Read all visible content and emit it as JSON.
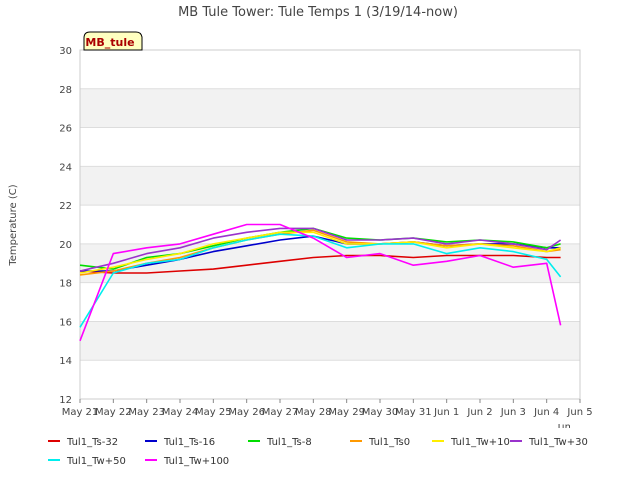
{
  "chart_data": {
    "type": "line",
    "title": "MB Tule Tower: Tule Temps 1 (3/19/14-now)",
    "xlabel": "",
    "ylabel": "Temperature (C)",
    "ylim": [
      12,
      30
    ],
    "yticks": [
      12,
      14,
      16,
      18,
      20,
      22,
      24,
      26,
      28,
      30
    ],
    "xlim": [
      "2014-05-21",
      "2014-06-05"
    ],
    "xtick_labels": [
      "May 21",
      "May 22",
      "May 23",
      "May 24",
      "May 25",
      "May 26",
      "May 27",
      "May 28",
      "May 29",
      "May 30",
      "May 31",
      "Jun 1",
      "Jun 2",
      "Jun 3",
      "Jun 4",
      "Jun 5"
    ],
    "x_corner_label": "Time",
    "grid": "horizontal bands",
    "station_label": "MB_tule",
    "legend_position": "bottom",
    "series": [
      {
        "name": "Tul1_Ts-32",
        "color": "#dd0000",
        "x": [
          "2014-05-21",
          "2014-05-22",
          "2014-05-23",
          "2014-05-24",
          "2014-05-25",
          "2014-05-26",
          "2014-05-27",
          "2014-05-28",
          "2014-05-29",
          "2014-05-30",
          "2014-05-31",
          "2014-06-01",
          "2014-06-02",
          "2014-06-03",
          "2014-06-04",
          "2014-06-04 10:00"
        ],
        "values": [
          18.6,
          18.5,
          18.5,
          18.6,
          18.7,
          18.9,
          19.1,
          19.3,
          19.4,
          19.4,
          19.3,
          19.4,
          19.4,
          19.4,
          19.3,
          19.3
        ]
      },
      {
        "name": "Tul1_Ts-16",
        "color": "#0000cc",
        "x": [
          "2014-05-21",
          "2014-05-22",
          "2014-05-23",
          "2014-05-24",
          "2014-05-25",
          "2014-05-26",
          "2014-05-27",
          "2014-05-28",
          "2014-05-29",
          "2014-05-30",
          "2014-05-31",
          "2014-06-01",
          "2014-06-02",
          "2014-06-03",
          "2014-06-04",
          "2014-06-04 10:00"
        ],
        "values": [
          18.6,
          18.6,
          18.9,
          19.2,
          19.6,
          19.9,
          20.2,
          20.4,
          20.0,
          20.0,
          20.1,
          19.9,
          20.0,
          20.0,
          19.8,
          19.8
        ]
      },
      {
        "name": "Tul1_Ts-8",
        "color": "#00dd00",
        "x": [
          "2014-05-21",
          "2014-05-22",
          "2014-05-23",
          "2014-05-24",
          "2014-05-25",
          "2014-05-26",
          "2014-05-27",
          "2014-05-28",
          "2014-05-29",
          "2014-05-30",
          "2014-05-31",
          "2014-06-01",
          "2014-06-02",
          "2014-06-03",
          "2014-06-04",
          "2014-06-04 10:00"
        ],
        "values": [
          18.9,
          18.7,
          19.3,
          19.5,
          19.9,
          20.3,
          20.6,
          20.8,
          20.3,
          20.2,
          20.3,
          20.1,
          20.2,
          20.1,
          19.8,
          20.0
        ]
      },
      {
        "name": "Tul1_Ts0",
        "color": "#ff9900",
        "x": [
          "2014-05-21",
          "2014-05-22",
          "2014-05-23",
          "2014-05-24",
          "2014-05-25",
          "2014-05-26",
          "2014-05-27",
          "2014-05-28",
          "2014-05-29",
          "2014-05-30",
          "2014-05-31",
          "2014-06-01",
          "2014-06-02",
          "2014-06-03",
          "2014-06-04",
          "2014-06-04 10:00"
        ],
        "values": [
          18.4,
          18.6,
          19.0,
          19.3,
          19.8,
          20.2,
          20.5,
          20.7,
          20.1,
          20.0,
          20.1,
          19.9,
          20.0,
          19.9,
          19.6,
          19.7
        ]
      },
      {
        "name": "Tul1_Tw+10",
        "color": "#ffee00",
        "x": [
          "2014-05-21",
          "2014-05-22",
          "2014-05-23",
          "2014-05-24",
          "2014-05-25",
          "2014-05-26",
          "2014-05-27",
          "2014-05-28",
          "2014-05-29",
          "2014-05-30",
          "2014-05-31",
          "2014-06-01",
          "2014-06-02",
          "2014-06-03",
          "2014-06-04",
          "2014-06-04 10:00"
        ],
        "values": [
          18.5,
          18.8,
          19.2,
          19.5,
          20.0,
          20.3,
          20.6,
          20.6,
          20.0,
          20.0,
          20.1,
          19.8,
          20.0,
          19.8,
          19.6,
          19.8
        ]
      },
      {
        "name": "Tul1_Tw+30",
        "color": "#9933cc",
        "x": [
          "2014-05-21",
          "2014-05-22",
          "2014-05-23",
          "2014-05-24",
          "2014-05-25",
          "2014-05-26",
          "2014-05-27",
          "2014-05-28",
          "2014-05-29",
          "2014-05-30",
          "2014-05-31",
          "2014-06-01",
          "2014-06-02",
          "2014-06-03",
          "2014-06-04",
          "2014-06-04 10:00"
        ],
        "values": [
          18.6,
          19.0,
          19.5,
          19.8,
          20.3,
          20.6,
          20.8,
          20.8,
          20.2,
          20.2,
          20.3,
          20.0,
          20.2,
          20.0,
          19.7,
          20.2
        ]
      },
      {
        "name": "Tul1_Tw+50",
        "color": "#00eeee",
        "x": [
          "2014-05-21",
          "2014-05-22",
          "2014-05-23",
          "2014-05-24",
          "2014-05-25",
          "2014-05-26",
          "2014-05-27",
          "2014-05-28",
          "2014-05-29",
          "2014-05-30",
          "2014-05-31",
          "2014-06-01",
          "2014-06-02",
          "2014-06-03",
          "2014-06-04",
          "2014-06-04 10:00"
        ],
        "values": [
          15.7,
          18.5,
          19.0,
          19.2,
          19.8,
          20.2,
          20.5,
          20.4,
          19.8,
          20.0,
          20.0,
          19.5,
          19.8,
          19.6,
          19.2,
          18.3
        ]
      },
      {
        "name": "Tul1_Tw+100",
        "color": "#ff00ff",
        "x": [
          "2014-05-21",
          "2014-05-22",
          "2014-05-23",
          "2014-05-24",
          "2014-05-25",
          "2014-05-26",
          "2014-05-27",
          "2014-05-28",
          "2014-05-29",
          "2014-05-30",
          "2014-05-31",
          "2014-06-01",
          "2014-06-02",
          "2014-06-03",
          "2014-06-04",
          "2014-06-04 10:00"
        ],
        "values": [
          15.0,
          19.5,
          19.8,
          20.0,
          20.5,
          21.0,
          21.0,
          20.3,
          19.3,
          19.5,
          18.9,
          19.1,
          19.4,
          18.8,
          19.0,
          15.8
        ]
      }
    ]
  }
}
